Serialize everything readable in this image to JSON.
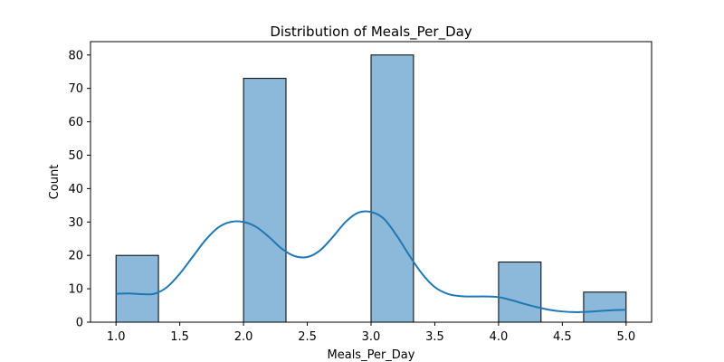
{
  "chart_data": {
    "type": "bar",
    "title": "Distribution of Meals_Per_Day",
    "xlabel": "Meals_Per_Day",
    "ylabel": "Count",
    "xlim": [
      0.8,
      5.2
    ],
    "ylim": [
      0,
      84
    ],
    "xticks": [
      1.0,
      1.5,
      2.0,
      2.5,
      3.0,
      3.5,
      4.0,
      4.5,
      5.0
    ],
    "xtick_labels": [
      "1.0",
      "1.5",
      "2.0",
      "2.5",
      "3.0",
      "3.5",
      "4.0",
      "4.5",
      "5.0"
    ],
    "yticks": [
      0,
      10,
      20,
      30,
      40,
      50,
      60,
      70,
      80
    ],
    "ytick_labels": [
      "0",
      "10",
      "20",
      "30",
      "40",
      "50",
      "60",
      "70",
      "80"
    ],
    "bins": [
      {
        "x0": 1.0,
        "x1": 1.333,
        "count": 20
      },
      {
        "x0": 1.333,
        "x1": 1.667,
        "count": 0
      },
      {
        "x0": 1.667,
        "x1": 2.0,
        "count": 0
      },
      {
        "x0": 2.0,
        "x1": 2.333,
        "count": 73
      },
      {
        "x0": 2.333,
        "x1": 2.667,
        "count": 0
      },
      {
        "x0": 2.667,
        "x1": 3.0,
        "count": 0
      },
      {
        "x0": 3.0,
        "x1": 3.333,
        "count": 80
      },
      {
        "x0": 3.333,
        "x1": 3.667,
        "count": 0
      },
      {
        "x0": 3.667,
        "x1": 4.0,
        "count": 0
      },
      {
        "x0": 4.0,
        "x1": 4.333,
        "count": 18
      },
      {
        "x0": 4.333,
        "x1": 4.667,
        "count": 0
      },
      {
        "x0": 4.667,
        "x1": 5.0,
        "count": 9
      }
    ],
    "kde": {
      "x": [
        1.0,
        1.1,
        1.2,
        1.3,
        1.4,
        1.5,
        1.6,
        1.7,
        1.8,
        1.9,
        2.0,
        2.1,
        2.2,
        2.3,
        2.4,
        2.5,
        2.6,
        2.7,
        2.8,
        2.9,
        3.0,
        3.1,
        3.2,
        3.3,
        3.4,
        3.5,
        3.6,
        3.7,
        3.8,
        3.9,
        4.0,
        4.1,
        4.2,
        4.3,
        4.4,
        4.5,
        4.6,
        4.7,
        4.8,
        4.9,
        5.0
      ],
      "y": [
        8.5,
        8.6,
        8.4,
        8.5,
        10.5,
        14.5,
        19.5,
        24.5,
        28.3,
        30.0,
        30.0,
        28.5,
        25.5,
        22.0,
        19.8,
        19.5,
        21.5,
        25.5,
        30.0,
        32.8,
        33.0,
        31.0,
        26.0,
        20.0,
        14.5,
        10.5,
        8.5,
        7.8,
        7.7,
        7.7,
        7.5,
        6.6,
        5.5,
        4.5,
        3.7,
        3.2,
        3.0,
        3.1,
        3.4,
        3.6,
        3.7
      ]
    },
    "colors": {
      "bar_fill": "#8cb8da",
      "bar_edge": "#000000",
      "kde_line": "#1f77b4"
    },
    "grid": false,
    "legend": "none"
  }
}
